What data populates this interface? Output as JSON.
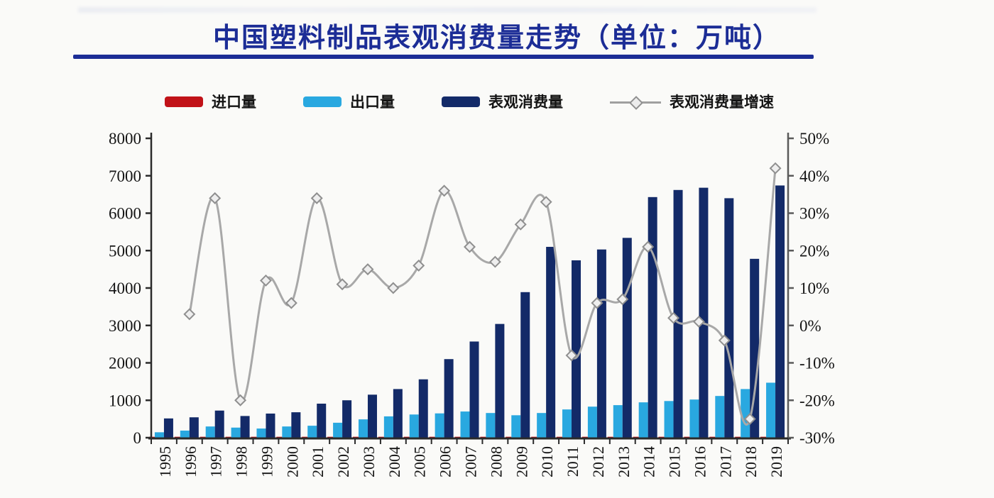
{
  "page": {
    "title": "中国塑料制品表观消费量走势（单位：万吨）",
    "accent_color": "#1c2d96",
    "background_color": "#fafaf8"
  },
  "legend": {
    "items": [
      {
        "label": "进口量",
        "marker": "bar-swatch",
        "color": "#c11218"
      },
      {
        "label": "出口量",
        "marker": "bar-swatch",
        "color": "#29a8e0"
      },
      {
        "label": "表观消费量",
        "marker": "bar-swatch",
        "color": "#132a68"
      },
      {
        "label": "表观消费量增速",
        "marker": "line-diamond",
        "color": "#a0a0a0"
      }
    ]
  },
  "chart_data": {
    "type": "combo (grouped bars + line)",
    "title": "中国塑料制品表观消费量走势（单位：万吨）",
    "categories": [
      "1995",
      "1996",
      "1997",
      "1998",
      "1999",
      "2000",
      "2001",
      "2002",
      "2003",
      "2004",
      "2005",
      "2006",
      "2007",
      "2008",
      "2009",
      "2010",
      "2011",
      "2012",
      "2013",
      "2014",
      "2015",
      "2016",
      "2017",
      "2018",
      "2019"
    ],
    "left_axis": {
      "range": [
        0,
        8000
      ],
      "tick_labels": [
        "8000",
        "7000",
        "6000",
        "5000",
        "4000",
        "3000",
        "2000",
        "1000",
        "0"
      ],
      "tick_values": [
        8000,
        7000,
        6000,
        5000,
        4000,
        3000,
        2000,
        1000,
        0
      ]
    },
    "right_axis": {
      "range": [
        -30,
        50
      ],
      "tick_labels": [
        "50%",
        "40%",
        "30%",
        "20%",
        "10%",
        "0%",
        "-10%",
        "-20%",
        "-30%"
      ],
      "tick_values": [
        50,
        40,
        30,
        20,
        10,
        0,
        -10,
        -20,
        -30
      ]
    },
    "grid": "off",
    "legend_position": "top",
    "series": [
      {
        "name": "进口量",
        "kind": "bar",
        "axis": "left",
        "color": "#c11218",
        "note": "import bars are so small they are not visibly rendered at chart scale (values estimated near zero)",
        "values": [
          25,
          25,
          25,
          25,
          25,
          25,
          25,
          25,
          25,
          25,
          25,
          25,
          25,
          25,
          25,
          25,
          25,
          25,
          25,
          25,
          25,
          25,
          25,
          25,
          25
        ]
      },
      {
        "name": "出口量",
        "kind": "bar",
        "axis": "left",
        "color": "#29a8e0",
        "values": [
          145,
          190,
          300,
          270,
          245,
          300,
          320,
          400,
          490,
          570,
          620,
          650,
          700,
          660,
          600,
          660,
          755,
          830,
          870,
          945,
          980,
          1020,
          1115,
          1300,
          1470
        ]
      },
      {
        "name": "表观消费量",
        "kind": "bar",
        "axis": "left",
        "color": "#132a68",
        "values": [
          515,
          545,
          725,
          580,
          645,
          680,
          910,
          1000,
          1150,
          1300,
          1560,
          2100,
          2570,
          3040,
          3890,
          5100,
          4740,
          5030,
          5340,
          6430,
          6620,
          6680,
          6400,
          4780,
          6740
        ]
      },
      {
        "name": "表观消费量增速",
        "kind": "line",
        "axis": "right",
        "unit": "%",
        "color": "#a8a8a8",
        "marker": "diamond",
        "values": [
          null,
          3,
          34,
          -20,
          12,
          6,
          34,
          11,
          15,
          10,
          16,
          36,
          21,
          17,
          27,
          33,
          -8,
          6,
          7,
          21,
          2,
          1,
          -4,
          -25,
          42
        ]
      }
    ]
  }
}
